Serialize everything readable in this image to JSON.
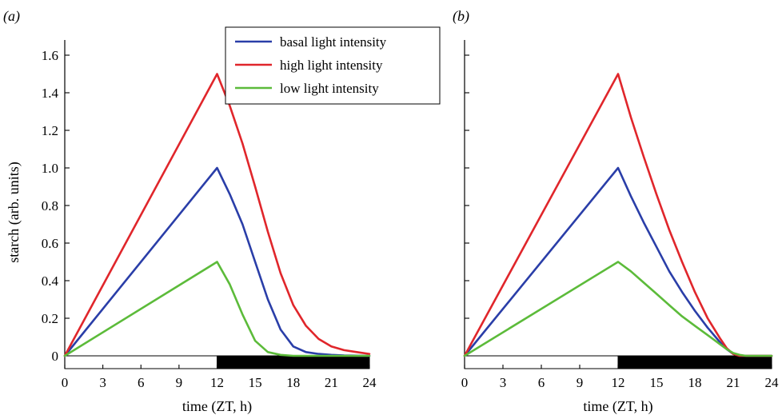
{
  "chart_data": [
    {
      "type": "line",
      "panel_tag": "(a)",
      "xlabel": "time (ZT, h)",
      "ylabel": "starch (arb. units)",
      "xlim": [
        0,
        24
      ],
      "ylim": [
        -0.1,
        1.7
      ],
      "xticks": [
        0,
        3,
        6,
        9,
        12,
        15,
        18,
        21,
        24
      ],
      "yticks": [
        0,
        0.2,
        0.4,
        0.6,
        0.8,
        1.0,
        1.2,
        1.4,
        1.6
      ],
      "ytick_labels": [
        "0",
        "0.2",
        "0.4",
        "0.6",
        "0.8",
        "1.0",
        "1.2",
        "1.4",
        "1.6"
      ],
      "grid": false,
      "legend": "top-right",
      "light_dark_bar": {
        "light": [
          0,
          12
        ],
        "dark": [
          12,
          24
        ]
      },
      "series": [
        {
          "name": "basal light intensity",
          "color": "#2a3ea8",
          "x": [
            0,
            12,
            13,
            14,
            15,
            16,
            17,
            18,
            19,
            20,
            21,
            22,
            23,
            24
          ],
          "y": [
            0,
            1.0,
            0.86,
            0.7,
            0.5,
            0.3,
            0.14,
            0.05,
            0.02,
            0.01,
            0.005,
            0.002,
            0.001,
            0.0
          ]
        },
        {
          "name": "high light intensity",
          "color": "#e0262b",
          "x": [
            0,
            12,
            13,
            14,
            15,
            16,
            17,
            18,
            19,
            20,
            21,
            22,
            23,
            24
          ],
          "y": [
            0,
            1.5,
            1.33,
            1.13,
            0.9,
            0.66,
            0.44,
            0.27,
            0.16,
            0.09,
            0.05,
            0.03,
            0.02,
            0.01
          ]
        },
        {
          "name": "low light intensity",
          "color": "#5cbb3a",
          "x": [
            0,
            12,
            13,
            14,
            15,
            16,
            17,
            18,
            19,
            20,
            21,
            22,
            23,
            24
          ],
          "y": [
            0,
            0.5,
            0.38,
            0.22,
            0.08,
            0.02,
            0.005,
            0.0,
            0.0,
            0.0,
            0.0,
            0.0,
            0.0,
            0.0
          ]
        }
      ]
    },
    {
      "type": "line",
      "panel_tag": "(b)",
      "xlabel": "time (ZT, h)",
      "ylabel": "",
      "xlim": [
        0,
        24
      ],
      "ylim": [
        -0.1,
        1.7
      ],
      "xticks": [
        0,
        3,
        6,
        9,
        12,
        15,
        18,
        21,
        24
      ],
      "yticks": [
        0,
        0.2,
        0.4,
        0.6,
        0.8,
        1.0,
        1.2,
        1.4,
        1.6
      ],
      "ytick_labels": [],
      "grid": false,
      "legend": "none",
      "light_dark_bar": {
        "light": [
          0,
          12
        ],
        "dark": [
          12,
          24
        ]
      },
      "series": [
        {
          "name": "basal light intensity",
          "color": "#2a3ea8",
          "x": [
            0,
            12,
            13,
            14,
            15,
            16,
            17,
            18,
            19,
            20,
            20.5,
            21,
            21.5,
            22,
            24
          ],
          "y": [
            0,
            1.0,
            0.85,
            0.71,
            0.58,
            0.45,
            0.34,
            0.24,
            0.15,
            0.07,
            0.035,
            0.01,
            0.0,
            0.0,
            0.0
          ]
        },
        {
          "name": "high light intensity",
          "color": "#e0262b",
          "x": [
            0,
            12,
            13,
            14,
            15,
            16,
            17,
            18,
            19,
            20,
            20.5,
            21,
            21.5,
            22,
            24
          ],
          "y": [
            0,
            1.5,
            1.27,
            1.06,
            0.86,
            0.67,
            0.5,
            0.34,
            0.2,
            0.09,
            0.04,
            0.01,
            0.0,
            0.0,
            0.0
          ]
        },
        {
          "name": "low light intensity",
          "color": "#5cbb3a",
          "x": [
            0,
            12,
            13,
            14,
            15,
            16,
            17,
            18,
            19,
            20,
            20.5,
            21,
            21.5,
            22,
            24
          ],
          "y": [
            0,
            0.5,
            0.45,
            0.39,
            0.33,
            0.27,
            0.21,
            0.16,
            0.11,
            0.06,
            0.035,
            0.015,
            0.005,
            0.0,
            0.0
          ]
        }
      ]
    }
  ]
}
